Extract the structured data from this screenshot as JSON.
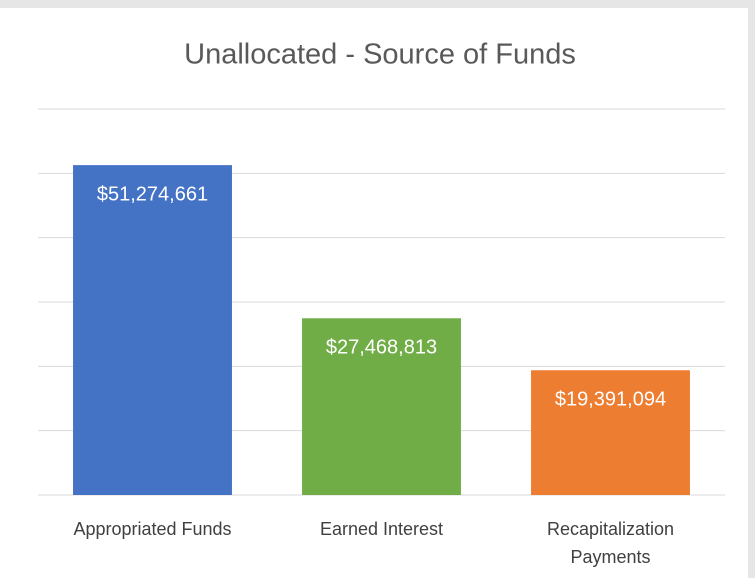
{
  "chart_data": {
    "type": "bar",
    "title": "Unallocated - Source of Funds",
    "categories": [
      "Appropriated Funds",
      "Earned Interest",
      "Recapitalization Payments"
    ],
    "values": [
      51274661,
      27468813,
      19391094
    ],
    "value_labels": [
      "$51,274,661",
      "$27,468,813",
      "$19,391,094"
    ],
    "colors": [
      "#4472c4",
      "#70ad47",
      "#ed7d31"
    ],
    "ylim": [
      0,
      60000000
    ],
    "yticks": [
      0,
      10000000,
      20000000,
      30000000,
      40000000,
      50000000,
      60000000
    ],
    "grid": true
  }
}
